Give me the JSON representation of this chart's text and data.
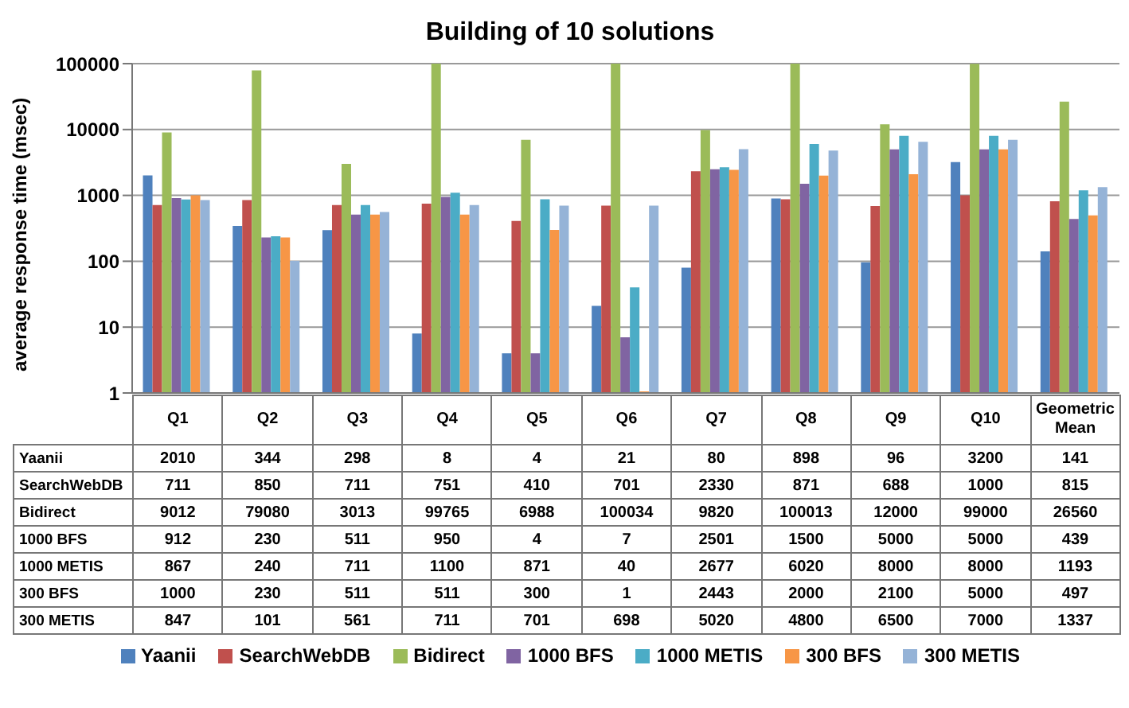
{
  "chart_data": {
    "type": "bar",
    "title": "Building of 10 solutions",
    "ylabel": "average response time (msec)",
    "categories": [
      "Q1",
      "Q2",
      "Q3",
      "Q4",
      "Q5",
      "Q6",
      "Q7",
      "Q8",
      "Q9",
      "Q10",
      "Geometric Mean"
    ],
    "series": [
      {
        "name": "Yaanii",
        "color": "#4f81bd",
        "values": [
          2010,
          344,
          298,
          8,
          4,
          21,
          80,
          898,
          96,
          3200,
          141
        ]
      },
      {
        "name": "SearchWebDB",
        "color": "#c0504d",
        "values": [
          711,
          850,
          711,
          751,
          410,
          701,
          2330,
          871,
          688,
          1000,
          815
        ]
      },
      {
        "name": "Bidirect",
        "color": "#9bbb59",
        "values": [
          9012,
          79080,
          3013,
          99765,
          6988,
          100034,
          9820,
          100013,
          12000,
          99000,
          26560
        ]
      },
      {
        "name": "1000 BFS",
        "color": "#8064a2",
        "values": [
          912,
          230,
          511,
          950,
          4,
          7,
          2501,
          1500,
          5000,
          5000,
          439
        ]
      },
      {
        "name": "1000 METIS",
        "color": "#4bacc6",
        "values": [
          867,
          240,
          711,
          1100,
          871,
          40,
          2677,
          6020,
          8000,
          8000,
          1193
        ]
      },
      {
        "name": "300 BFS",
        "color": "#f79646",
        "values": [
          1000,
          230,
          511,
          511,
          300,
          1,
          2443,
          2000,
          2100,
          5000,
          497
        ]
      },
      {
        "name": "300 METIS",
        "color": "#95b3d7",
        "values": [
          847,
          101,
          561,
          711,
          701,
          698,
          5020,
          4800,
          6500,
          7000,
          1337
        ]
      }
    ],
    "log": "y",
    "ylim": [
      1,
      100034
    ],
    "yticks": [
      1,
      10,
      100,
      1000,
      10000,
      100000
    ],
    "grid": "y",
    "legend": "bottom",
    "data_labels": true
  }
}
